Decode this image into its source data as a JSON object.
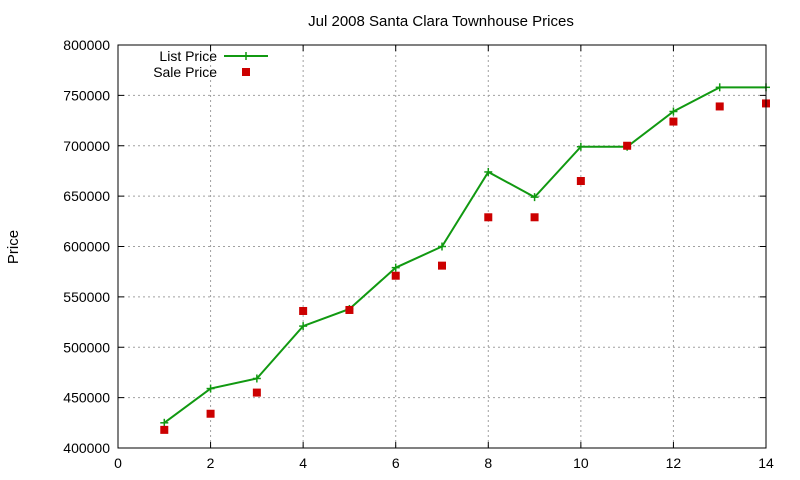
{
  "chart_data": {
    "type": "line",
    "title": "Jul 2008 Santa Clara Townhouse Prices",
    "xlabel": "",
    "ylabel": "Price",
    "xlim": [
      0,
      14
    ],
    "ylim": [
      400000,
      800000
    ],
    "x_ticks": [
      0,
      2,
      4,
      6,
      8,
      10,
      12,
      14
    ],
    "y_ticks": [
      400000,
      450000,
      500000,
      550000,
      600000,
      650000,
      700000,
      750000,
      800000
    ],
    "grid": true,
    "legend_position": "top-left",
    "series": [
      {
        "name": "List Price",
        "style": "line-with-plus-markers",
        "color": "#119911",
        "x": [
          1,
          2,
          3,
          4,
          5,
          6,
          7,
          8,
          9,
          10,
          11,
          12,
          13,
          14
        ],
        "y": [
          425000,
          459000,
          469000,
          521000,
          538000,
          579000,
          600000,
          674000,
          649000,
          699000,
          699000,
          734000,
          758000,
          758000
        ]
      },
      {
        "name": "Sale Price",
        "style": "square-markers",
        "color": "#cc0000",
        "x": [
          1,
          2,
          3,
          4,
          5,
          6,
          7,
          8,
          9,
          10,
          11,
          12,
          13,
          14
        ],
        "y": [
          418000,
          434000,
          455000,
          536000,
          537000,
          571000,
          581000,
          629000,
          629000,
          665000,
          700000,
          724000,
          739000,
          742000
        ]
      }
    ]
  }
}
